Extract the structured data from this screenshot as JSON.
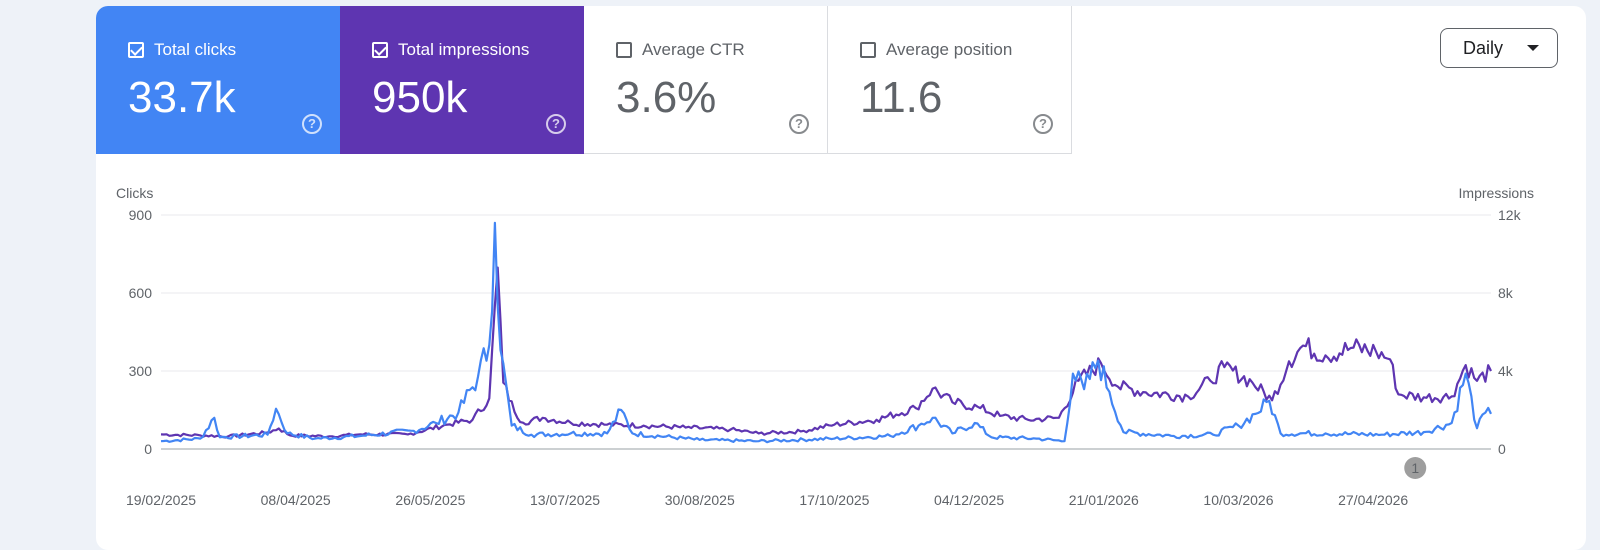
{
  "metrics": {
    "clicks": {
      "label": "Total clicks",
      "value": "33.7k",
      "checked": true,
      "color": "#4285f4"
    },
    "impressions": {
      "label": "Total impressions",
      "value": "950k",
      "checked": true,
      "color": "#5e35b1"
    },
    "ctr": {
      "label": "Average CTR",
      "value": "3.6%",
      "checked": false
    },
    "position": {
      "label": "Average position",
      "value": "11.6",
      "checked": false
    }
  },
  "help_glyph": "?",
  "granularity": {
    "label": "Daily"
  },
  "chart_data": {
    "type": "line",
    "start_date": "2025-02-19",
    "end_date": "2026-06-08",
    "x_ticks": [
      "19/02/2025",
      "08/04/2025",
      "26/05/2025",
      "13/07/2025",
      "30/08/2025",
      "17/10/2025",
      "04/12/2025",
      "21/01/2026",
      "10/03/2026",
      "27/04/2026"
    ],
    "left_axis": {
      "label": "Clicks",
      "ticks": [
        "0",
        "300",
        "600",
        "900"
      ],
      "ylim": [
        0,
        900
      ]
    },
    "right_axis": {
      "label": "Impressions",
      "ticks": [
        "0",
        "4k",
        "8k",
        "12k"
      ],
      "ylim": [
        0,
        12000
      ]
    },
    "annotation": {
      "label": "1",
      "date": "2026-05-12"
    },
    "grid": true,
    "series": [
      {
        "name": "Total clicks",
        "axis": "left",
        "color": "#4285f4",
        "points": [
          [
            "2025-02-19",
            30
          ],
          [
            "2025-03-05",
            40
          ],
          [
            "2025-03-10",
            120
          ],
          [
            "2025-03-12",
            45
          ],
          [
            "2025-03-29",
            55
          ],
          [
            "2025-04-01",
            155
          ],
          [
            "2025-04-05",
            60
          ],
          [
            "2025-04-15",
            40
          ],
          [
            "2025-05-01",
            50
          ],
          [
            "2025-05-20",
            70
          ],
          [
            "2025-05-28",
            100
          ],
          [
            "2025-06-05",
            140
          ],
          [
            "2025-06-12",
            280
          ],
          [
            "2025-06-16",
            400
          ],
          [
            "2025-06-18",
            870
          ],
          [
            "2025-06-20",
            380
          ],
          [
            "2025-06-24",
            90
          ],
          [
            "2025-07-01",
            55
          ],
          [
            "2025-07-15",
            60
          ],
          [
            "2025-07-28",
            60
          ],
          [
            "2025-08-02",
            150
          ],
          [
            "2025-08-06",
            60
          ],
          [
            "2025-08-30",
            35
          ],
          [
            "2025-09-20",
            30
          ],
          [
            "2025-10-17",
            40
          ],
          [
            "2025-11-06",
            50
          ],
          [
            "2025-11-16",
            90
          ],
          [
            "2025-11-21",
            120
          ],
          [
            "2025-11-28",
            60
          ],
          [
            "2025-12-06",
            100
          ],
          [
            "2025-12-12",
            45
          ],
          [
            "2025-12-28",
            40
          ],
          [
            "2026-01-07",
            30
          ],
          [
            "2026-01-10",
            290
          ],
          [
            "2026-01-14",
            230
          ],
          [
            "2026-01-19",
            340
          ],
          [
            "2026-01-23",
            220
          ],
          [
            "2026-01-28",
            65
          ],
          [
            "2026-02-15",
            50
          ],
          [
            "2026-03-01",
            55
          ],
          [
            "2026-03-10",
            90
          ],
          [
            "2026-03-16",
            135
          ],
          [
            "2026-03-21",
            185
          ],
          [
            "2026-03-25",
            60
          ],
          [
            "2026-04-10",
            60
          ],
          [
            "2026-04-30",
            55
          ],
          [
            "2026-05-15",
            65
          ],
          [
            "2026-05-25",
            100
          ],
          [
            "2026-05-30",
            290
          ],
          [
            "2026-06-03",
            80
          ],
          [
            "2026-06-06",
            140
          ],
          [
            "2026-06-08",
            135
          ]
        ]
      },
      {
        "name": "Total impressions",
        "axis": "right",
        "color": "#5e35b1",
        "points": [
          [
            "2025-02-19",
            750
          ],
          [
            "2025-03-05",
            700
          ],
          [
            "2025-03-15",
            650
          ],
          [
            "2025-03-29",
            850
          ],
          [
            "2025-04-02",
            1050
          ],
          [
            "2025-04-06",
            700
          ],
          [
            "2025-04-20",
            650
          ],
          [
            "2025-05-01",
            750
          ],
          [
            "2025-05-18",
            750
          ],
          [
            "2025-06-01",
            1250
          ],
          [
            "2025-06-10",
            1500
          ],
          [
            "2025-06-16",
            2600
          ],
          [
            "2025-06-19",
            9300
          ],
          [
            "2025-06-21",
            3400
          ],
          [
            "2025-06-25",
            1900
          ],
          [
            "2025-06-28",
            1350
          ],
          [
            "2025-07-05",
            1600
          ],
          [
            "2025-07-15",
            1350
          ],
          [
            "2025-07-28",
            1250
          ],
          [
            "2025-08-10",
            1200
          ],
          [
            "2025-08-25",
            1100
          ],
          [
            "2025-09-10",
            1000
          ],
          [
            "2025-09-20",
            800
          ],
          [
            "2025-10-05",
            900
          ],
          [
            "2025-10-17",
            1250
          ],
          [
            "2025-11-01",
            1500
          ],
          [
            "2025-11-15",
            2100
          ],
          [
            "2025-11-21",
            3100
          ],
          [
            "2025-11-28",
            2400
          ],
          [
            "2025-12-08",
            2100
          ],
          [
            "2025-12-15",
            1700
          ],
          [
            "2025-12-25",
            1500
          ],
          [
            "2026-01-05",
            1600
          ],
          [
            "2026-01-12",
            3500
          ],
          [
            "2026-01-20",
            4400
          ],
          [
            "2026-01-26",
            3200
          ],
          [
            "2026-02-05",
            2900
          ],
          [
            "2026-02-20",
            2700
          ],
          [
            "2026-02-28",
            3500
          ],
          [
            "2026-03-05",
            4200
          ],
          [
            "2026-03-15",
            3400
          ],
          [
            "2026-03-22",
            2500
          ],
          [
            "2026-03-28",
            4500
          ],
          [
            "2026-04-02",
            5300
          ],
          [
            "2026-04-10",
            4800
          ],
          [
            "2026-04-20",
            5200
          ],
          [
            "2026-04-28",
            5000
          ],
          [
            "2026-05-03",
            4600
          ],
          [
            "2026-05-06",
            2800
          ],
          [
            "2026-05-15",
            2650
          ],
          [
            "2026-05-25",
            2700
          ],
          [
            "2026-05-30",
            4300
          ],
          [
            "2026-06-03",
            3500
          ],
          [
            "2026-06-08",
            4000
          ]
        ]
      }
    ]
  }
}
